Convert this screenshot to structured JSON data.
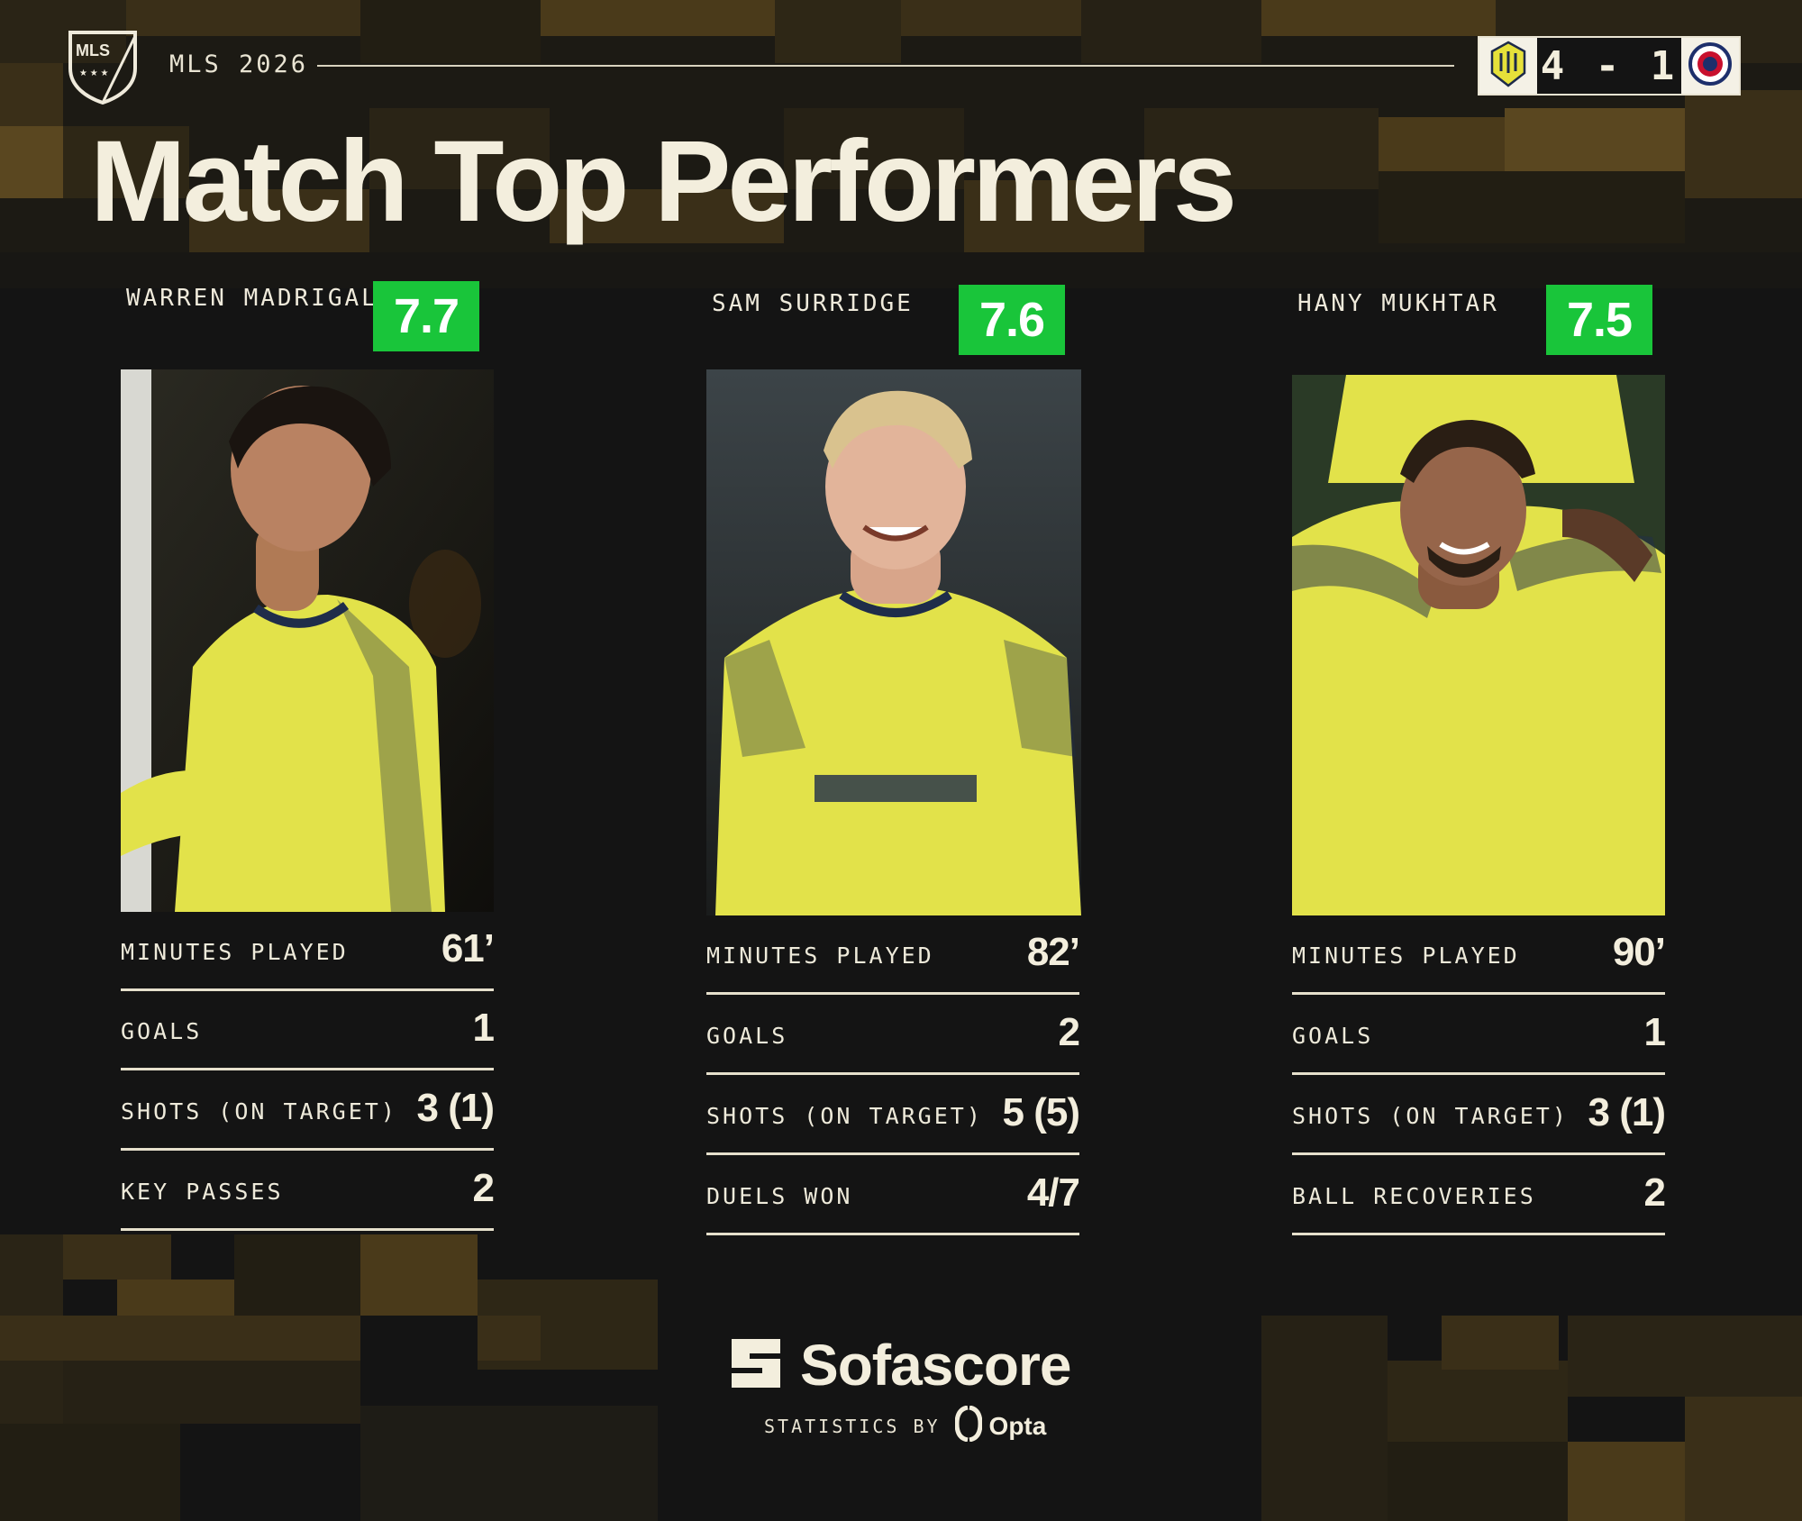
{
  "header": {
    "league_logo_text": "MLS",
    "competition": "MLS 2026",
    "score": "4 - 1",
    "home_badge_icon": "nashville-sc-crest-icon",
    "away_badge_icon": "new-england-revolution-crest-icon"
  },
  "title": "Match Top Performers",
  "players": [
    {
      "name": "WARREN MADRIGAL",
      "rating": "7.7",
      "stats": [
        {
          "label": "MINUTES PLAYED",
          "value": "61’"
        },
        {
          "label": "GOALS",
          "value": "1"
        },
        {
          "label": "SHOTS (ON TARGET)",
          "value": "3 (1)"
        },
        {
          "label": "KEY PASSES",
          "value": "2"
        }
      ]
    },
    {
      "name": "SAM SURRIDGE",
      "rating": "7.6",
      "stats": [
        {
          "label": "MINUTES PLAYED",
          "value": "82’"
        },
        {
          "label": "GOALS",
          "value": "2"
        },
        {
          "label": "SHOTS (ON TARGET)",
          "value": "5 (5)"
        },
        {
          "label": "DUELS WON",
          "value": "4/7"
        }
      ]
    },
    {
      "name": "HANY MUKHTAR",
      "rating": "7.5",
      "stats": [
        {
          "label": "MINUTES PLAYED",
          "value": "90’"
        },
        {
          "label": "GOALS",
          "value": "1"
        },
        {
          "label": "SHOTS (ON TARGET)",
          "value": "3 (1)"
        },
        {
          "label": "BALL RECOVERIES",
          "value": "2"
        }
      ]
    }
  ],
  "footer": {
    "brand": "Sofascore",
    "statistics_by": "STATISTICS BY",
    "provider": "Opta"
  },
  "colors": {
    "background": "#141414",
    "rating_green": "#19c53a",
    "kit_yellow": "#e2e24a",
    "text_cream": "#f3eedd",
    "camo_brown": "#3a2f18"
  }
}
